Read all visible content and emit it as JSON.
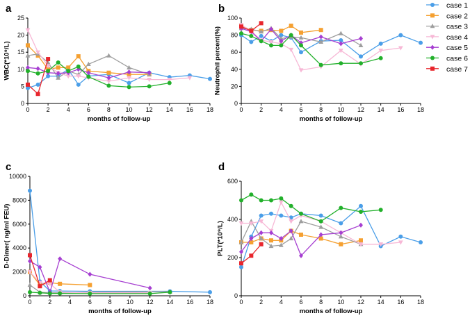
{
  "legend": {
    "entries": [
      {
        "name": "case 1",
        "color": "#4a9ee8",
        "marker": "circle"
      },
      {
        "name": "case 2",
        "color": "#f5a031",
        "marker": "square"
      },
      {
        "name": "case 3",
        "color": "#9e9e9e",
        "marker": "triangle"
      },
      {
        "name": "case 4",
        "color": "#f7b8d6",
        "marker": "triangle-down"
      },
      {
        "name": "case 5",
        "color": "#a63fd1",
        "marker": "diamond"
      },
      {
        "name": "case 6",
        "color": "#22b02b",
        "marker": "circle"
      },
      {
        "name": "case 7",
        "color": "#e8262d",
        "marker": "square"
      }
    ]
  },
  "chart_data": [
    {
      "panel": "a",
      "type": "line",
      "title": "",
      "xlabel": "months of follow-up",
      "ylabel": "WBC(*10⁹/L)",
      "xlim": [
        0,
        18
      ],
      "ylim": [
        0,
        25
      ],
      "xticks": [
        "0",
        "2",
        "4",
        "6",
        "8",
        "10",
        "12",
        "14",
        "16",
        "18"
      ],
      "yticks": [
        "0",
        "5",
        "10",
        "15",
        "20",
        "25"
      ],
      "series": [
        {
          "name": "case 1",
          "x": [
            0,
            1,
            2,
            3,
            4,
            5,
            6,
            8,
            10,
            12,
            14,
            16,
            18
          ],
          "y": [
            4.5,
            5.5,
            8,
            8,
            10,
            5.5,
            8,
            8.5,
            6,
            9,
            7.7,
            8.2,
            7.2
          ]
        },
        {
          "name": "case 2",
          "x": [
            0,
            1,
            2,
            3,
            4,
            5,
            6,
            8,
            10,
            12
          ],
          "y": [
            17,
            14,
            10,
            10.5,
            10.5,
            13.8,
            9.5,
            9,
            8.5,
            8.5
          ]
        },
        {
          "name": "case 3",
          "x": [
            0,
            1,
            2,
            3,
            4,
            5,
            6,
            8,
            10,
            12
          ],
          "y": [
            14,
            14.5,
            12,
            7.5,
            9.5,
            8.5,
            11.5,
            14,
            10.5,
            8.5
          ]
        },
        {
          "name": "case 4",
          "x": [
            0,
            1,
            2,
            3,
            4,
            5,
            6,
            8,
            10,
            12,
            14,
            16
          ],
          "y": [
            21.5,
            15,
            11,
            9,
            8,
            8,
            7.5,
            6.5,
            7.5,
            7,
            7,
            7.5
          ]
        },
        {
          "name": "case 5",
          "x": [
            0,
            1,
            2,
            3,
            4,
            5,
            6,
            8,
            10,
            12
          ],
          "y": [
            10.5,
            10.2,
            9,
            8.8,
            9,
            10,
            9,
            7.5,
            9.2,
            9
          ]
        },
        {
          "name": "case 6",
          "x": [
            0,
            1,
            2,
            3,
            4,
            5,
            6,
            8,
            10,
            12,
            14
          ],
          "y": [
            9.5,
            8.8,
            9.5,
            12,
            9.5,
            10.8,
            7.8,
            5.2,
            4.8,
            5,
            6
          ]
        },
        {
          "name": "case 7",
          "x": [
            0,
            1,
            2
          ],
          "y": [
            5.5,
            2.8,
            13
          ]
        }
      ]
    },
    {
      "panel": "b",
      "type": "line",
      "title": "",
      "xlabel": "months of follow-up",
      "ylabel": "Neutrophil percent(%)",
      "xlim": [
        0,
        18
      ],
      "ylim": [
        0,
        100
      ],
      "xticks": [
        "0",
        "2",
        "4",
        "6",
        "8",
        "10",
        "12",
        "14",
        "16",
        "18"
      ],
      "yticks": [
        "0",
        "20",
        "40",
        "60",
        "80",
        "100"
      ],
      "series": [
        {
          "name": "case 1",
          "x": [
            0,
            1,
            2,
            3,
            4,
            5,
            6,
            8,
            10,
            12,
            14,
            16,
            18
          ],
          "y": [
            80,
            72,
            79,
            73,
            80,
            77,
            60,
            73,
            74,
            55,
            70,
            80,
            71
          ]
        },
        {
          "name": "case 2",
          "x": [
            0,
            1,
            2,
            3,
            4,
            5,
            6,
            8
          ],
          "y": [
            91,
            86,
            85,
            86,
            85,
            91,
            83,
            86
          ]
        },
        {
          "name": "case 3",
          "x": [
            0,
            1,
            2,
            3,
            4,
            5,
            6,
            8,
            10,
            12
          ],
          "y": [
            88,
            87,
            84,
            88,
            76,
            78,
            77,
            72,
            82,
            68
          ]
        },
        {
          "name": "case 4",
          "x": [
            0,
            1,
            2,
            3,
            4,
            5,
            6,
            8,
            10,
            12,
            14,
            16
          ],
          "y": [
            92,
            85,
            74,
            72,
            70,
            63,
            39,
            43,
            62,
            46,
            62,
            65
          ]
        },
        {
          "name": "case 5",
          "x": [
            0,
            1,
            2,
            3,
            4,
            5,
            6,
            8,
            10,
            12
          ],
          "y": [
            88,
            84,
            73,
            87,
            73,
            80,
            71,
            78,
            70,
            76
          ]
        },
        {
          "name": "case 6",
          "x": [
            0,
            1,
            2,
            3,
            4,
            5,
            6,
            8,
            10,
            12,
            14
          ],
          "y": [
            82,
            79,
            73,
            68,
            68,
            80,
            68,
            45,
            47,
            47,
            53
          ]
        },
        {
          "name": "case 7",
          "x": [
            0,
            1,
            2
          ],
          "y": [
            90,
            85,
            94
          ]
        }
      ]
    },
    {
      "panel": "c",
      "type": "line",
      "title": "",
      "xlabel": "months of follow-up",
      "ylabel": "D-Dimer( ng/ml FEU)",
      "xlim": [
        0,
        18
      ],
      "ylim": [
        0,
        10000
      ],
      "xticks": [
        "0",
        "2",
        "4",
        "6",
        "8",
        "10",
        "12",
        "14",
        "16",
        "18"
      ],
      "yticks": [
        "0",
        "2000",
        "4000",
        "6000",
        "8000",
        "10000"
      ],
      "series": [
        {
          "name": "case 1",
          "x": [
            0,
            1,
            2,
            3,
            6,
            14,
            18
          ],
          "y": [
            8800,
            1200,
            400,
            400,
            380,
            380,
            300
          ]
        },
        {
          "name": "case 2",
          "x": [
            0,
            1,
            2,
            3,
            6
          ],
          "y": [
            2000,
            900,
            1100,
            1000,
            900
          ]
        },
        {
          "name": "case 3",
          "x": [
            0,
            1,
            2,
            3,
            6,
            14
          ],
          "y": [
            900,
            300,
            250,
            250,
            300,
            350
          ]
        },
        {
          "name": "case 4",
          "x": [
            0,
            1,
            2,
            3,
            6,
            12
          ],
          "y": [
            2000,
            1100,
            1000,
            300,
            250,
            250
          ]
        },
        {
          "name": "case 5",
          "x": [
            0,
            1,
            2,
            3,
            6,
            12
          ],
          "y": [
            2900,
            2400,
            300,
            3100,
            1800,
            650
          ]
        },
        {
          "name": "case 6",
          "x": [
            0,
            1,
            2,
            3,
            6,
            12,
            14
          ],
          "y": [
            300,
            250,
            200,
            200,
            180,
            180,
            300
          ]
        },
        {
          "name": "case 7",
          "x": [
            0,
            1,
            2
          ],
          "y": [
            3400,
            800,
            1300
          ]
        }
      ]
    },
    {
      "panel": "d",
      "type": "line",
      "title": "",
      "xlabel": "months of follow-up",
      "ylabel": "PLT(*10⁹/L)",
      "xlim": [
        0,
        18
      ],
      "ylim": [
        0,
        600
      ],
      "xticks": [
        "0",
        "2",
        "4",
        "6",
        "8",
        "10",
        "12",
        "14",
        "16",
        "18"
      ],
      "yticks": [
        "0",
        "200",
        "400",
        "600"
      ],
      "series": [
        {
          "name": "case 1",
          "x": [
            0,
            1,
            2,
            3,
            4,
            5,
            6,
            8,
            10,
            12,
            14,
            16,
            18
          ],
          "y": [
            150,
            310,
            420,
            430,
            420,
            410,
            430,
            420,
            380,
            470,
            260,
            310,
            280
          ]
        },
        {
          "name": "case 2",
          "x": [
            0,
            1,
            2,
            3,
            4,
            5,
            6,
            8,
            10,
            12
          ],
          "y": [
            280,
            280,
            300,
            290,
            290,
            340,
            320,
            300,
            270,
            290
          ]
        },
        {
          "name": "case 3",
          "x": [
            0,
            1,
            2,
            3,
            4,
            5,
            6,
            8,
            10,
            12
          ],
          "y": [
            280,
            390,
            300,
            260,
            265,
            300,
            390,
            360,
            310,
            270
          ]
        },
        {
          "name": "case 4",
          "x": [
            0,
            1,
            2,
            3,
            4,
            5,
            6,
            8,
            10,
            12,
            14,
            16
          ],
          "y": [
            380,
            380,
            390,
            340,
            490,
            390,
            420,
            390,
            330,
            270,
            270,
            280
          ]
        },
        {
          "name": "case 5",
          "x": [
            0,
            1,
            2,
            3,
            4,
            5,
            6,
            8,
            10,
            12
          ],
          "y": [
            230,
            300,
            330,
            330,
            300,
            340,
            210,
            320,
            330,
            370
          ]
        },
        {
          "name": "case 6",
          "x": [
            0,
            1,
            2,
            3,
            4,
            5,
            6,
            8,
            10,
            12,
            14
          ],
          "y": [
            500,
            530,
            500,
            500,
            510,
            470,
            430,
            390,
            460,
            440,
            450
          ]
        },
        {
          "name": "case 7",
          "x": [
            0,
            1,
            2
          ],
          "y": [
            170,
            210,
            270
          ]
        }
      ]
    }
  ]
}
